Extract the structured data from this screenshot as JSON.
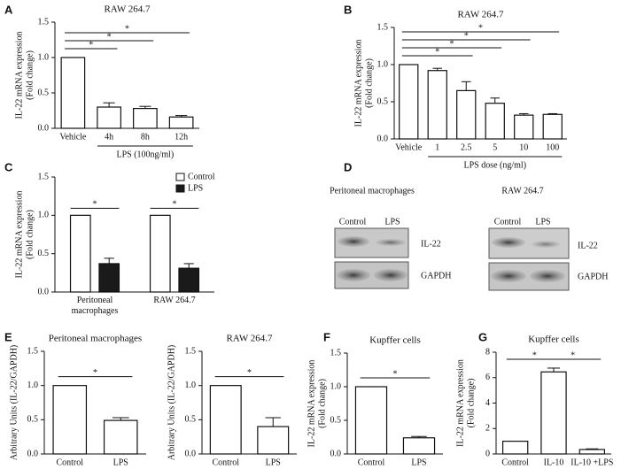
{
  "chart_data": [
    {
      "type": "bar",
      "label": "A",
      "title": "RAW 264.7",
      "ylabel": [
        "IL-22  mRNA expression",
        "(Fold change)"
      ],
      "categories": [
        "Vehicle",
        "4h",
        "8h",
        "12h"
      ],
      "values": [
        1.0,
        0.3,
        0.28,
        0.16
      ],
      "errors": [
        null,
        0.06,
        0.03,
        0.02
      ],
      "xlabel": "LPS (100ng/ml)",
      "xlabel_span": [
        1,
        3
      ],
      "color": "#ffffff",
      "ylim": [
        0,
        1.5
      ],
      "yticks": [
        {
          "value": 0,
          "label": "0.0"
        },
        {
          "value": 0.5,
          "label": "0.5"
        },
        {
          "value": 1,
          "label": "1.0"
        },
        {
          "value": 1.5,
          "label": "1.5"
        }
      ],
      "significance": [
        {
          "pair": [
            0,
            1
          ],
          "text": "*"
        },
        {
          "pair": [
            0,
            2
          ],
          "text": "*"
        },
        {
          "pair": [
            0,
            3
          ],
          "text": "*"
        }
      ]
    },
    {
      "type": "bar",
      "label": "B",
      "title": "RAW 264.7",
      "ylabel": [
        "IL-22  mRNA expression",
        "(Fold change)"
      ],
      "categories": [
        "Vehicle",
        "1",
        "2.5",
        "5",
        "10",
        "100"
      ],
      "values": [
        1.0,
        0.92,
        0.65,
        0.48,
        0.32,
        0.33
      ],
      "errors": [
        null,
        0.03,
        0.12,
        0.07,
        0.02,
        0.01
      ],
      "xlabel": "LPS dose (ng/ml)",
      "xlabel_span": [
        1,
        5
      ],
      "color": "#ffffff",
      "ylim": [
        0,
        1.5
      ],
      "yticks": [
        {
          "value": 0,
          "label": "0.0"
        },
        {
          "value": 0.5,
          "label": "0.5"
        },
        {
          "value": 1,
          "label": "1.0"
        },
        {
          "value": 1.5,
          "label": "1.5"
        }
      ],
      "significance": [
        {
          "pair": [
            0,
            2
          ],
          "text": "*"
        },
        {
          "pair": [
            0,
            3
          ],
          "text": "*"
        },
        {
          "pair": [
            0,
            4
          ],
          "text": "*"
        },
        {
          "pair": [
            0,
            5
          ],
          "text": "*"
        }
      ]
    },
    {
      "type": "grouped_bar",
      "label": "C",
      "ylabel": [
        "IL-22  mRNA expression",
        "(Fold change)"
      ],
      "categories": [
        "Peritoneal macrophages",
        "RAW 264.7"
      ],
      "series": [
        {
          "name": "Control",
          "color": "#ffffff",
          "values": [
            1.0,
            1.0
          ]
        },
        {
          "name": "LPS",
          "color": "#1a1a1a",
          "values": [
            0.37,
            0.31
          ],
          "errors": [
            0.07,
            0.06
          ]
        }
      ],
      "legend": "upper right",
      "ylim": [
        0,
        1.5
      ],
      "yticks": [
        {
          "value": 0,
          "label": "0.0"
        },
        {
          "value": 0.5,
          "label": "0.5"
        },
        {
          "value": 1,
          "label": "1.0"
        },
        {
          "value": 1.5,
          "label": "1.5"
        }
      ],
      "significance": [
        {
          "category": 0,
          "text": "*"
        },
        {
          "category": 1,
          "text": "*"
        }
      ]
    },
    {
      "type": "bar",
      "label": "E",
      "title": "Peritoneal macrophages",
      "ylabel": [
        "Arbitrary Units  (IL-22/GAPDH)"
      ],
      "categories": [
        "Control",
        "LPS"
      ],
      "values": [
        1.0,
        0.49
      ],
      "errors": [
        null,
        0.04
      ],
      "color": "#ffffff",
      "ylim": [
        0,
        1.5
      ],
      "yticks": [
        {
          "value": 0,
          "label": "0.0"
        },
        {
          "value": 0.5,
          "label": "0.5"
        },
        {
          "value": 1,
          "label": "1.0"
        },
        {
          "value": 1.5,
          "label": "1.5"
        }
      ],
      "significance": [
        {
          "pair": [
            0,
            1
          ],
          "text": "*"
        }
      ]
    },
    {
      "type": "bar",
      "title": "RAW 264.7",
      "ylabel": [
        "Arbitrary Units  (IL-22/GAPDH)"
      ],
      "categories": [
        "Control",
        "LPS"
      ],
      "values": [
        1.0,
        0.4
      ],
      "errors": [
        null,
        0.13
      ],
      "color": "#ffffff",
      "ylim": [
        0,
        1.5
      ],
      "yticks": [
        {
          "value": 0,
          "label": "0.0"
        },
        {
          "value": 0.5,
          "label": "0.5"
        },
        {
          "value": 1,
          "label": "1.0"
        },
        {
          "value": 1.5,
          "label": "1.5"
        }
      ],
      "significance": [
        {
          "pair": [
            0,
            1
          ],
          "text": "*"
        }
      ]
    },
    {
      "type": "bar",
      "label": "F",
      "title": "Kupffer cells",
      "ylabel": [
        "IL-22  mRNA expression",
        "(Fold change)"
      ],
      "categories": [
        "Control",
        "LPS"
      ],
      "values": [
        1.0,
        0.24
      ],
      "errors": [
        null,
        0.02
      ],
      "color": "#ffffff",
      "ylim": [
        0,
        1.5
      ],
      "yticks": [
        {
          "value": 0,
          "label": "0.0"
        },
        {
          "value": 0.5,
          "label": "0.5"
        },
        {
          "value": 1,
          "label": "1.0"
        },
        {
          "value": 1.5,
          "label": "1.5"
        }
      ],
      "significance": [
        {
          "pair": [
            0,
            1
          ],
          "text": "*"
        }
      ]
    },
    {
      "type": "bar",
      "label": "G",
      "title": "Kupffer cells",
      "ylabel": [
        "IL-22  mRNA expression",
        "(Fold change)"
      ],
      "categories": [
        "Control",
        "IL-10",
        "IL-10 +LPS"
      ],
      "values": [
        1.0,
        6.45,
        0.35
      ],
      "errors": [
        null,
        0.3,
        0.05
      ],
      "color": "#ffffff",
      "ylim": [
        0,
        8
      ],
      "yticks": [
        0,
        2,
        4,
        6,
        8
      ],
      "significance": [
        {
          "pair": [
            0,
            1
          ],
          "text": "*"
        },
        {
          "pair": [
            1,
            2
          ],
          "text": "*"
        }
      ]
    }
  ],
  "blot": {
    "label": "D",
    "groups": [
      {
        "title": "Peritoneal macrophages",
        "lanes": [
          "Control",
          "LPS"
        ],
        "rows": [
          "IL-22",
          "GAPDH"
        ]
      },
      {
        "title": "RAW 264.7",
        "lanes": [
          "Control",
          "LPS"
        ],
        "rows": [
          "IL-22",
          "GAPDH"
        ]
      }
    ]
  }
}
